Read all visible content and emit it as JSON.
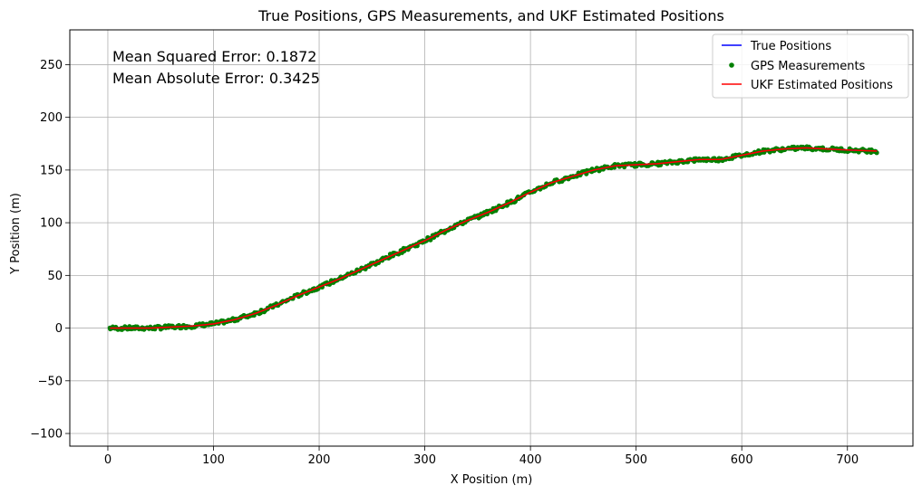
{
  "chart_data": {
    "type": "line",
    "title": "True Positions, GPS Measurements, and UKF Estimated Positions",
    "xlabel": "X Position (m)",
    "ylabel": "Y Position (m)",
    "xlim": [
      -36,
      762
    ],
    "ylim": [
      -112,
      283
    ],
    "xticks": [
      0,
      100,
      200,
      300,
      400,
      500,
      600,
      700
    ],
    "yticks": [
      -100,
      -50,
      0,
      50,
      100,
      150,
      200,
      250
    ],
    "xtick_labels": [
      "0",
      "100",
      "200",
      "300",
      "400",
      "500",
      "600",
      "700"
    ],
    "ytick_labels": [
      "−100",
      "−50",
      "0",
      "50",
      "100",
      "150",
      "200",
      "250"
    ],
    "grid": true,
    "legend_position": "top-right",
    "annotations": [
      "Mean Squared Error: 0.1872",
      "Mean Absolute Error: 0.3425"
    ],
    "series": [
      {
        "name": "True Positions",
        "kind": "line",
        "color": "#0000ff",
        "x": [
          2,
          20,
          40,
          60,
          80,
          100,
          120,
          140,
          160,
          180,
          200,
          220,
          240,
          260,
          280,
          300,
          320,
          340,
          360,
          380,
          400,
          420,
          440,
          460,
          480,
          500,
          520,
          540,
          560,
          580,
          600,
          620,
          640,
          660,
          680,
          700,
          728
        ],
        "y": [
          0,
          0,
          0,
          1,
          2,
          4,
          8,
          14,
          22,
          31,
          39,
          47,
          56,
          65,
          74,
          83,
          93,
          102,
          110,
          119,
          129,
          138,
          144,
          150,
          154,
          155,
          156,
          158,
          160,
          160,
          164,
          168,
          170,
          171,
          170,
          169,
          168
        ]
      },
      {
        "name": "GPS Measurements",
        "kind": "scatter",
        "color": "#008000",
        "x": [
          2,
          20,
          40,
          60,
          80,
          100,
          120,
          140,
          160,
          180,
          200,
          220,
          240,
          260,
          280,
          300,
          320,
          340,
          360,
          380,
          400,
          420,
          440,
          460,
          480,
          500,
          520,
          540,
          560,
          580,
          600,
          620,
          640,
          660,
          680,
          700,
          728
        ],
        "y": [
          0,
          0,
          0,
          1,
          2,
          4,
          8,
          14,
          22,
          31,
          39,
          47,
          56,
          65,
          74,
          83,
          93,
          102,
          110,
          119,
          129,
          138,
          144,
          150,
          154,
          155,
          156,
          158,
          160,
          160,
          164,
          168,
          170,
          171,
          170,
          169,
          168
        ]
      },
      {
        "name": "UKF Estimated Positions",
        "kind": "line",
        "color": "#ff0000",
        "x": [
          2,
          20,
          40,
          60,
          80,
          100,
          120,
          140,
          160,
          180,
          200,
          220,
          240,
          260,
          280,
          300,
          320,
          340,
          360,
          380,
          400,
          420,
          440,
          460,
          480,
          500,
          520,
          540,
          560,
          580,
          600,
          620,
          640,
          660,
          680,
          700,
          728
        ],
        "y": [
          0,
          0,
          0,
          1,
          2,
          4,
          8,
          14,
          22,
          31,
          39,
          47,
          56,
          65,
          74,
          83,
          93,
          102,
          110,
          119,
          129,
          138,
          144,
          150,
          154,
          155,
          156,
          158,
          160,
          160,
          164,
          168,
          170,
          171,
          170,
          169,
          168
        ]
      }
    ]
  }
}
